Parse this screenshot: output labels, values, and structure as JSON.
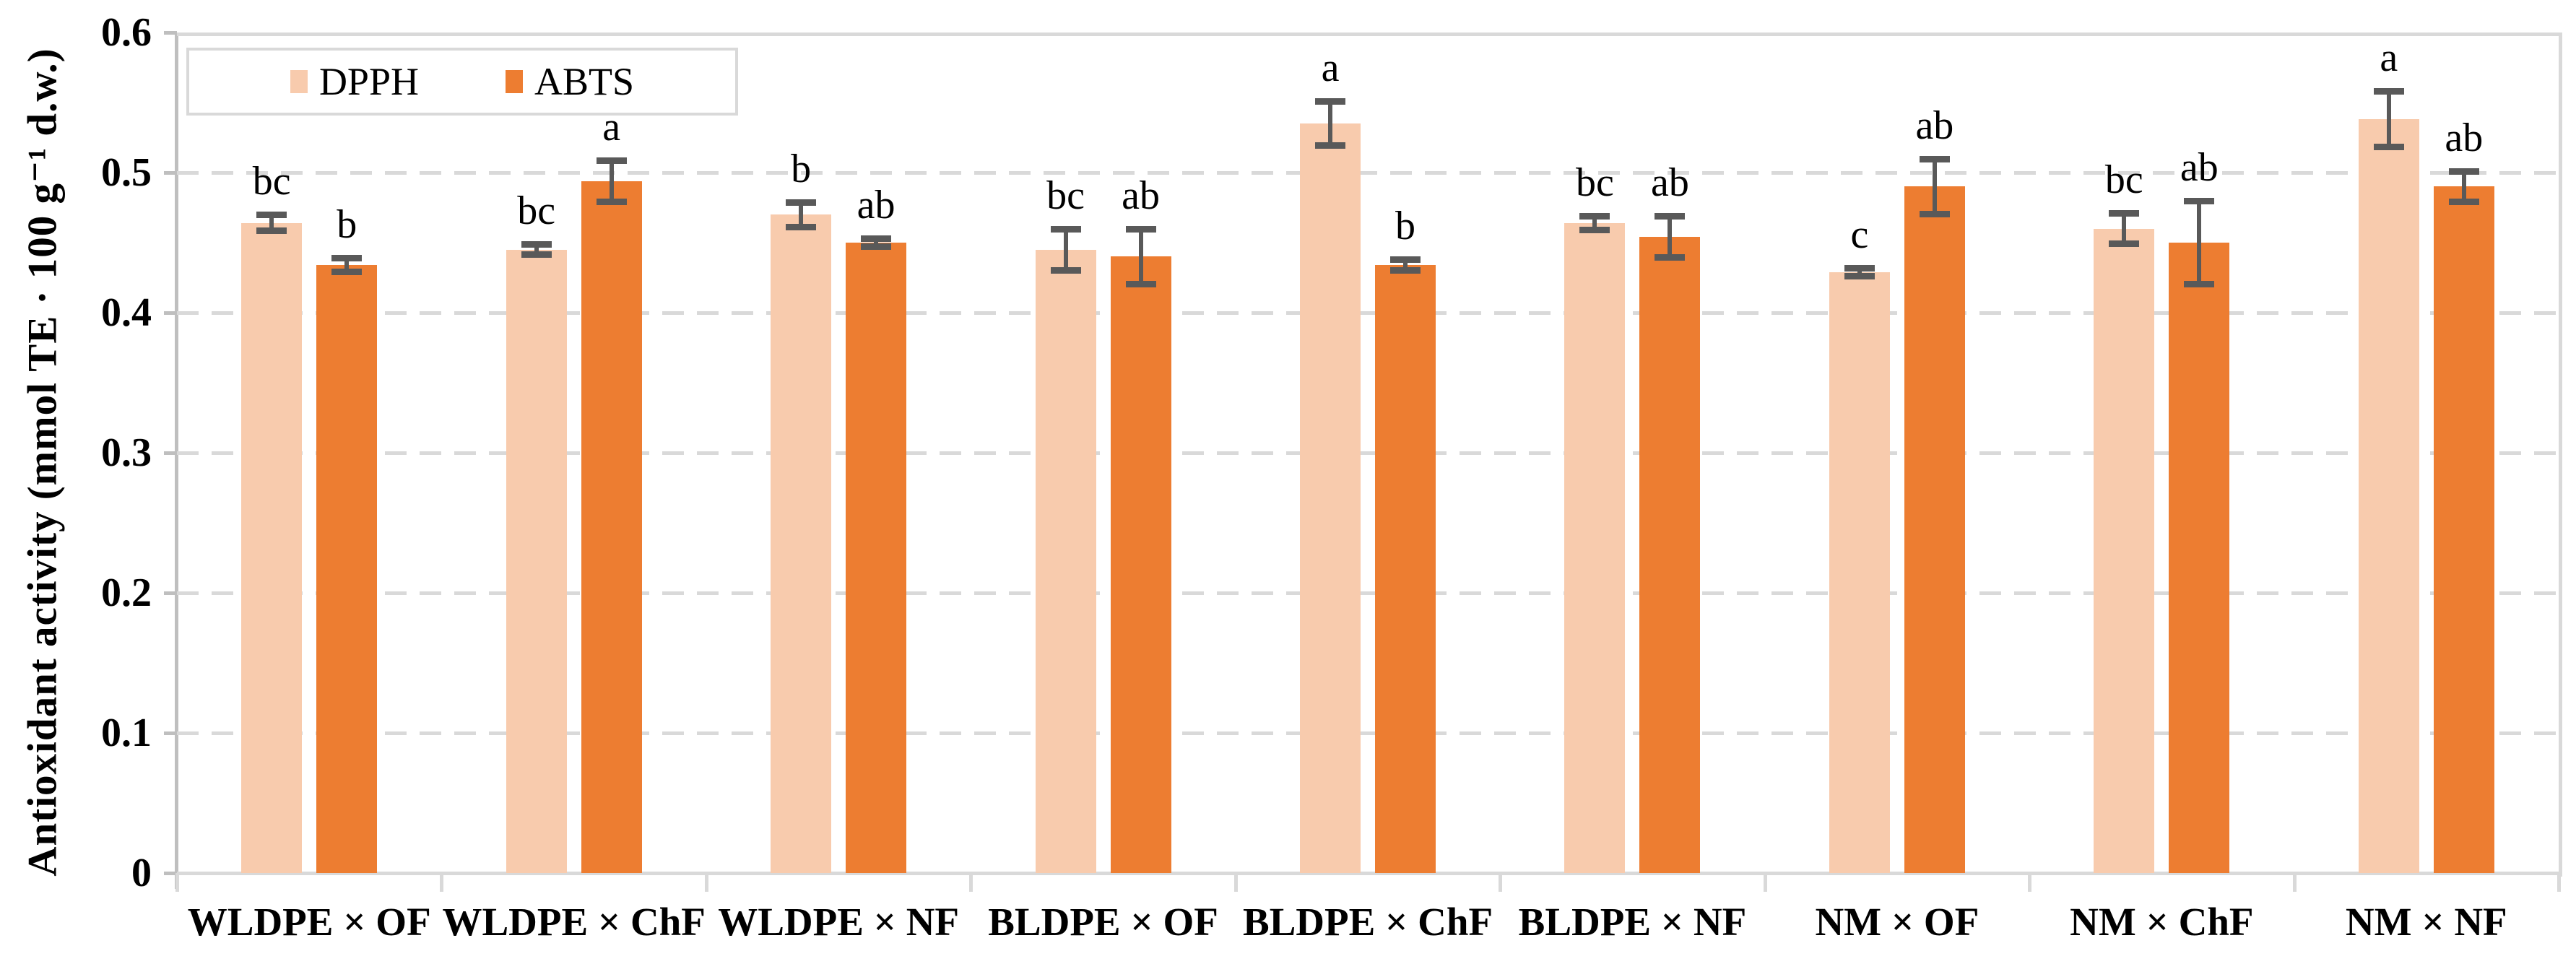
{
  "y_axis": {
    "title": "Antioxidant activity (mmol TE · 100 g⁻¹ d.w.)",
    "tick_labels": [
      "0",
      "0.1",
      "0.2",
      "0.3",
      "0.4",
      "0.5",
      "0.6"
    ]
  },
  "legend": {
    "items": [
      {
        "label": "DPPH",
        "color": "#F8CBAD"
      },
      {
        "label": "ABTS",
        "color": "#ED7D31"
      }
    ]
  },
  "colors": {
    "dpph": "#F8CBAD",
    "abts": "#ED7D31",
    "error_bar": "#595959",
    "gridline": "#D9D9D9",
    "axis": "#BFBFBF"
  },
  "chart_data": {
    "type": "bar",
    "title": "",
    "xlabel": "",
    "ylabel": "Antioxidant activity (mmol TE · 100 g⁻¹ d.w.)",
    "ylim": [
      0,
      0.6
    ],
    "ytick_step": 0.1,
    "grid": "horizontal-dashed",
    "legend_position": "inside-top-left",
    "categories": [
      "WLDPE × OF",
      "WLDPE × ChF",
      "WLDPE × NF",
      "BLDPE × OF",
      "BLDPE × ChF",
      "BLDPE × NF",
      "NM × OF",
      "NM × ChF",
      "NM × NF"
    ],
    "series": [
      {
        "name": "DPPH",
        "color": "#F8CBAD",
        "values": [
          0.464,
          0.445,
          0.47,
          0.445,
          0.535,
          0.464,
          0.429,
          0.46,
          0.538
        ],
        "errors": [
          0.006,
          0.004,
          0.009,
          0.015,
          0.016,
          0.005,
          0.003,
          0.011,
          0.02
        ],
        "sig_letters": [
          "bc",
          "bc",
          "b",
          "bc",
          "a",
          "bc",
          "c",
          "bc",
          "a"
        ]
      },
      {
        "name": "ABTS",
        "color": "#ED7D31",
        "values": [
          0.434,
          0.494,
          0.45,
          0.44,
          0.434,
          0.454,
          0.49,
          0.45,
          0.49
        ],
        "errors": [
          0.005,
          0.015,
          0.003,
          0.02,
          0.004,
          0.015,
          0.02,
          0.03,
          0.011
        ],
        "sig_letters": [
          "b",
          "a",
          "ab",
          "ab",
          "b",
          "ab",
          "ab",
          "ab",
          "ab"
        ]
      }
    ]
  }
}
